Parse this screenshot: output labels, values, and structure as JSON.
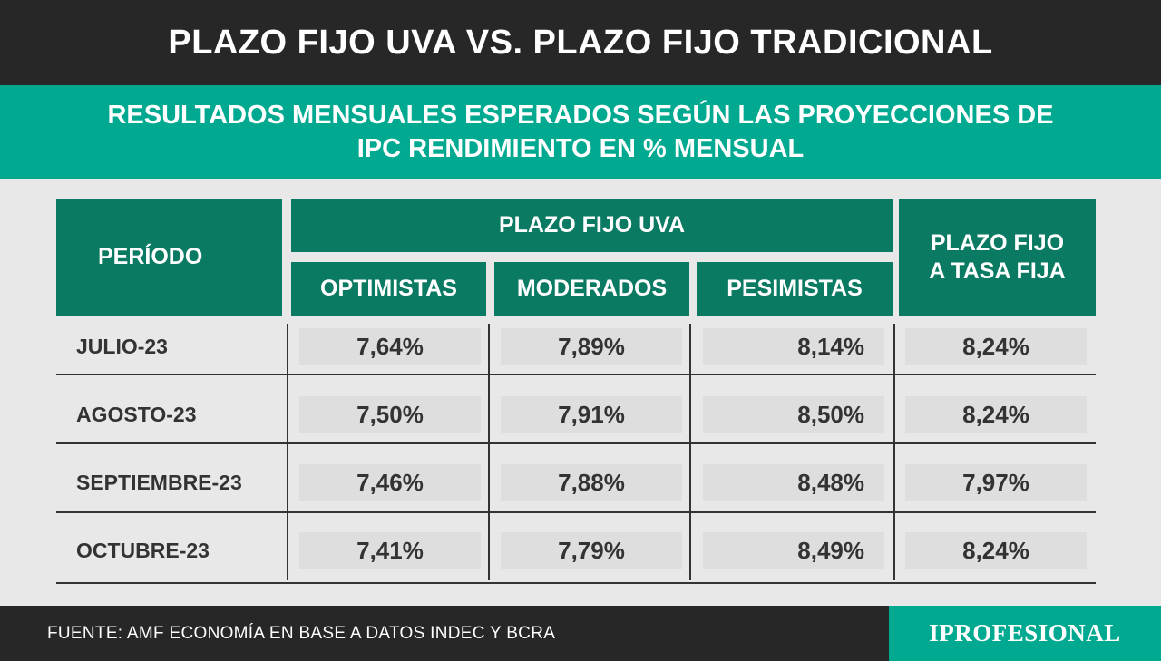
{
  "title": "PLAZO FIJO UVA VS. PLAZO FIJO TRADICIONAL",
  "subtitle_line1": "RESULTADOS MENSUALES ESPERADOS SEGÚN LAS PROYECCIONES DE",
  "subtitle_line2": "IPC RENDIMIENTO EN % MENSUAL",
  "headers": {
    "periodo": "PERÍODO",
    "uva_group": "PLAZO FIJO UVA",
    "optimistas": "OPTIMISTAS",
    "moderados": "MODERADOS",
    "pesimistas": "PESIMISTAS",
    "tasa_fija_line1": "PLAZO FIJO",
    "tasa_fija_line2": "A TASA FIJA"
  },
  "rows": [
    {
      "periodo": "JULIO-23",
      "optimistas": "7,64%",
      "moderados": "7,89%",
      "pesimistas": "8,14%",
      "tasa_fija": "8,24%"
    },
    {
      "periodo": "AGOSTO-23",
      "optimistas": "7,50%",
      "moderados": "7,91%",
      "pesimistas": "8,50%",
      "tasa_fija": "8,24%"
    },
    {
      "periodo": "SEPTIEMBRE-23",
      "optimistas": "7,46%",
      "moderados": "7,88%",
      "pesimistas": "8,48%",
      "tasa_fija": "7,97%"
    },
    {
      "periodo": "OCTUBRE-23",
      "optimistas": "7,41%",
      "moderados": "7,79%",
      "pesimistas": "8,49%",
      "tasa_fija": "8,24%"
    }
  ],
  "footer": "FUENTE: AMF ECONOMÍA EN BASE A DATOS INDEC Y BCRA",
  "logo": "IPROFESIONAL",
  "colors": {
    "dark": "#272727",
    "teal": "#00a98f",
    "header_green": "#0a7a63"
  }
}
